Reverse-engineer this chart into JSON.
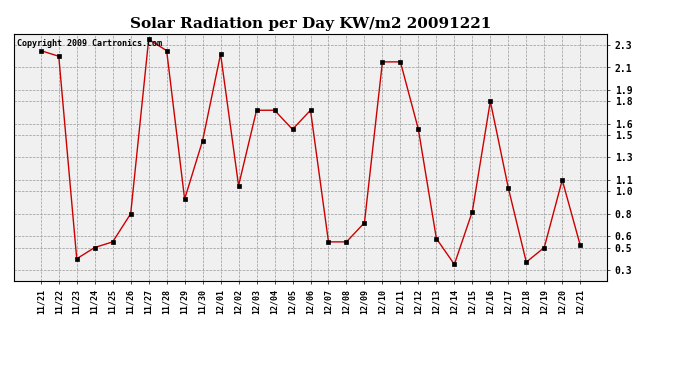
{
  "title": "Solar Radiation per Day KW/m2 20091221",
  "copyright_text": "Copyright 2009 Cartronics.com",
  "labels": [
    "11/21",
    "11/22",
    "11/23",
    "11/24",
    "11/25",
    "11/26",
    "11/27",
    "11/28",
    "11/29",
    "11/30",
    "12/01",
    "12/02",
    "12/03",
    "12/04",
    "12/05",
    "12/06",
    "12/07",
    "12/08",
    "12/09",
    "12/10",
    "12/11",
    "12/12",
    "12/13",
    "12/14",
    "12/15",
    "12/16",
    "12/17",
    "12/18",
    "12/19",
    "12/20",
    "12/21"
  ],
  "values": [
    2.25,
    2.2,
    0.4,
    0.5,
    0.55,
    0.8,
    2.35,
    2.25,
    0.93,
    1.45,
    2.22,
    1.05,
    1.72,
    1.72,
    1.55,
    1.72,
    0.55,
    0.55,
    0.72,
    2.15,
    2.15,
    1.55,
    0.58,
    0.35,
    0.82,
    1.8,
    1.03,
    0.37,
    0.5,
    1.1,
    0.52
  ],
  "line_color": "#cc0000",
  "marker": "s",
  "marker_size": 2.5,
  "ylim": [
    0.2,
    2.4
  ],
  "yticks": [
    0.3,
    0.5,
    0.6,
    0.8,
    1.0,
    1.1,
    1.3,
    1.5,
    1.6,
    1.8,
    1.9,
    2.1,
    2.3
  ],
  "grid_color": "#999999",
  "grid_style": "--",
  "bg_color": "#ffffff",
  "plot_bg_color": "#f0f0f0",
  "title_fontsize": 11,
  "tick_fontsize": 6,
  "copyright_fontsize": 6
}
